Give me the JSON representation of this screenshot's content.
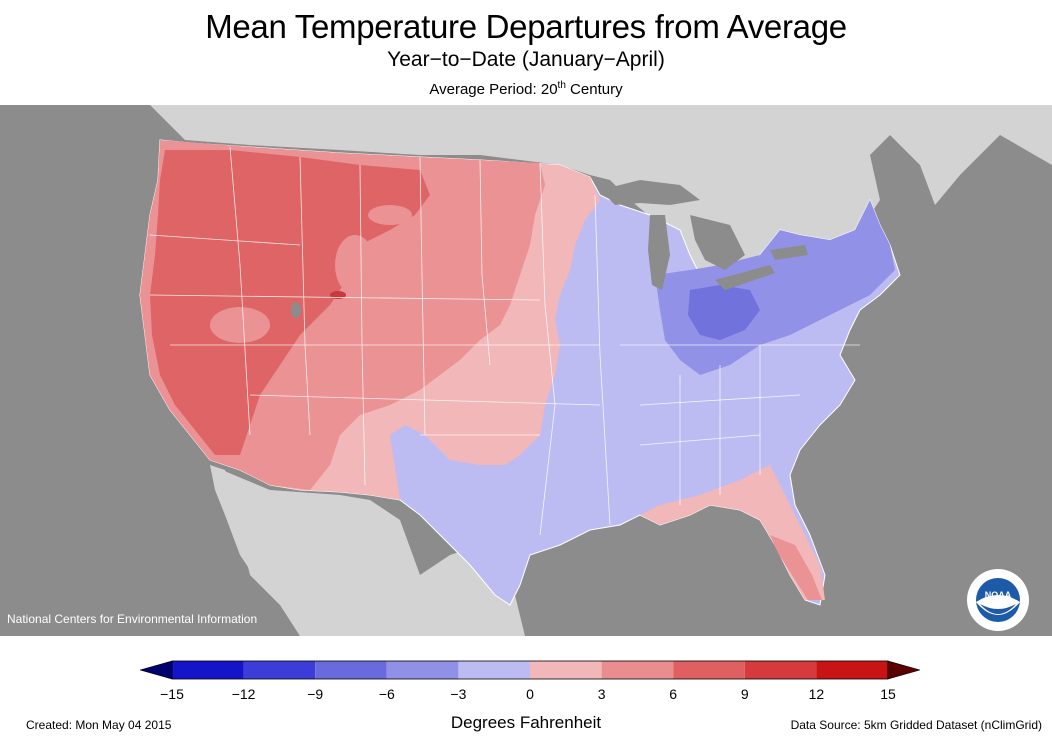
{
  "header": {
    "title": "Mean Temperature Departures from Average",
    "subtitle": "Year−to−Date (January−April)",
    "period_prefix": "Average Period: 20",
    "period_sup": "th",
    "period_suffix": " Century"
  },
  "map": {
    "credit": "National Centers for Environmental Information",
    "colors": {
      "ocean": "#8c8c8c",
      "land_outside": "#d3d3d3",
      "lakes": "#8c8c8c",
      "warm_0_3": "#f2b7b8",
      "warm_3_6": "#ea9294",
      "warm_6_9": "#de6466",
      "cool_0_3": "#bcbcf2",
      "cool_3_6": "#9191e8",
      "cool_6_9": "#7272dd"
    }
  },
  "legend": {
    "ticks": [
      "−15",
      "−12",
      "−9",
      "−6",
      "−3",
      "0",
      "3",
      "6",
      "9",
      "12",
      "15"
    ],
    "colors": [
      "#1414c8",
      "#3c3cd8",
      "#6a6adf",
      "#9090e6",
      "#bcbcf2",
      "#f2b7b8",
      "#ea8d8f",
      "#e06062",
      "#d63a3c",
      "#c81414"
    ],
    "arrow_low": "#00006e",
    "arrow_high": "#5a0000",
    "units": "Degrees Fahrenheit"
  },
  "footer": {
    "created": "Created: Mon May 04 2015",
    "source": "Data Source: 5km Gridded Dataset (nClimGrid)"
  },
  "logo": {
    "name": "noaa-logo",
    "text": "NOAA"
  }
}
